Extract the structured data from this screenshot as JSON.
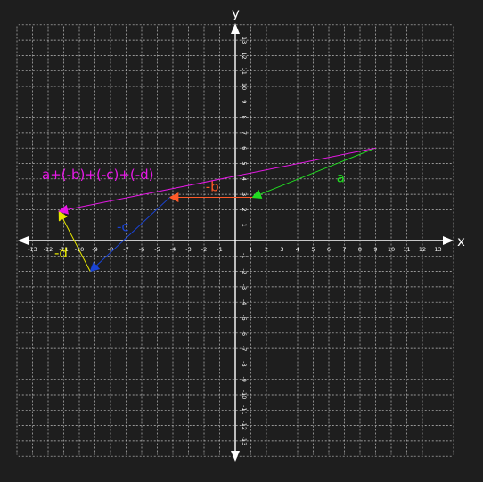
{
  "colors": {
    "background": "#1e1e1e",
    "grid": "#bdbdbd",
    "axis": "#ffffff",
    "tick_label": "#ffffff"
  },
  "axes": {
    "x_label": "x",
    "y_label": "y",
    "range": [
      -13,
      13
    ],
    "ticks": [
      -13,
      -12,
      -11,
      -10,
      -9,
      -8,
      -7,
      -6,
      -5,
      -4,
      -3,
      -2,
      -1,
      1,
      2,
      3,
      4,
      5,
      6,
      7,
      8,
      9,
      10,
      11,
      12,
      13
    ]
  },
  "vectors": [
    {
      "label": "a",
      "color": "#22dd22",
      "from": [
        9,
        6
      ],
      "to": [
        1.1,
        2.8
      ],
      "label_at": [
        6.5,
        3.8
      ]
    },
    {
      "label": "-b",
      "color": "#ff5a28",
      "from": [
        1.1,
        2.8
      ],
      "to": [
        -4.2,
        2.8
      ],
      "label_at": [
        -1.9,
        3.2
      ]
    },
    {
      "label": "-c",
      "color": "#1a44d6",
      "from": [
        -4.2,
        2.8
      ],
      "to": [
        -9.3,
        -2
      ],
      "label_at": [
        -7.6,
        0.6
      ]
    },
    {
      "label": "-d",
      "color": "#e6e600",
      "from": [
        -9.3,
        -2
      ],
      "to": [
        -11.3,
        1.9
      ],
      "label_at": [
        -11.6,
        -1.1
      ]
    },
    {
      "label": "a+(-b)+(-c)+(-d)",
      "color": "#e619e6",
      "from": [
        9,
        6
      ],
      "to": [
        -11.3,
        1.9
      ],
      "label_at": [
        -12.4,
        4.0
      ]
    }
  ]
}
